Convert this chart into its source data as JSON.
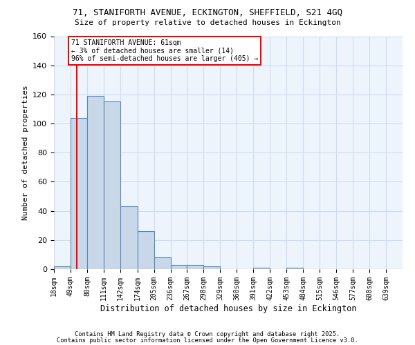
{
  "title1": "71, STANIFORTH AVENUE, ECKINGTON, SHEFFIELD, S21 4GQ",
  "title2": "Size of property relative to detached houses in Eckington",
  "xlabel": "Distribution of detached houses by size in Eckington",
  "ylabel": "Number of detached properties",
  "bar_values": [
    2,
    104,
    119,
    115,
    43,
    26,
    8,
    3,
    3,
    2,
    0,
    0,
    1,
    0,
    1,
    0,
    0,
    0,
    0,
    0,
    0
  ],
  "bin_edges": [
    18,
    49,
    80,
    111,
    142,
    174,
    205,
    236,
    267,
    298,
    329,
    360,
    391,
    422,
    453,
    484,
    515,
    546,
    577,
    608,
    639,
    670
  ],
  "tick_labels": [
    "18sqm",
    "49sqm",
    "80sqm",
    "111sqm",
    "142sqm",
    "174sqm",
    "205sqm",
    "236sqm",
    "267sqm",
    "298sqm",
    "329sqm",
    "360sqm",
    "391sqm",
    "422sqm",
    "453sqm",
    "484sqm",
    "515sqm",
    "546sqm",
    "577sqm",
    "608sqm",
    "639sqm"
  ],
  "bar_color": "#c8d8e8",
  "bar_edge_color": "#5588bb",
  "red_line_x": 61,
  "annotation_text": "71 STANIFORTH AVENUE: 61sqm\n← 3% of detached houses are smaller (14)\n96% of semi-detached houses are larger (405) →",
  "annotation_box_color": "white",
  "annotation_box_edge_color": "red",
  "red_line_color": "red",
  "ylim": [
    0,
    160
  ],
  "yticks": [
    0,
    20,
    40,
    60,
    80,
    100,
    120,
    140,
    160
  ],
  "grid_color": "#ccddee",
  "bg_color": "#eef4fb",
  "footer1": "Contains HM Land Registry data © Crown copyright and database right 2025.",
  "footer2": "Contains public sector information licensed under the Open Government Licence v3.0."
}
